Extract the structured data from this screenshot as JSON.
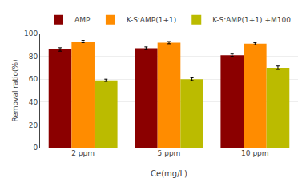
{
  "chart_data": {
    "type": "bar",
    "categories": [
      "2 ppm",
      "5 ppm",
      "10 ppm"
    ],
    "series": [
      {
        "name": "AMP",
        "color": "#8B0000",
        "values": [
          86,
          87,
          81
        ],
        "errors": [
          1.5,
          1.2,
          1.0
        ]
      },
      {
        "name": "K-S:AMP(1+1)",
        "color": "#FF8C00",
        "values": [
          93,
          92,
          91
        ],
        "errors": [
          1.0,
          1.0,
          1.0
        ]
      },
      {
        "name": "K-S:AMP(1+1) +M100",
        "color": "#BBBB00",
        "values": [
          59,
          60,
          70
        ],
        "errors": [
          1.0,
          1.2,
          1.5
        ]
      }
    ],
    "xlabel": "Ce(mg/L)",
    "ylabel": "Removal ratio(%)",
    "ylim": [
      0,
      100
    ],
    "yticks": [
      0,
      20,
      40,
      60,
      80,
      100
    ],
    "grid": true,
    "legend": "top"
  }
}
